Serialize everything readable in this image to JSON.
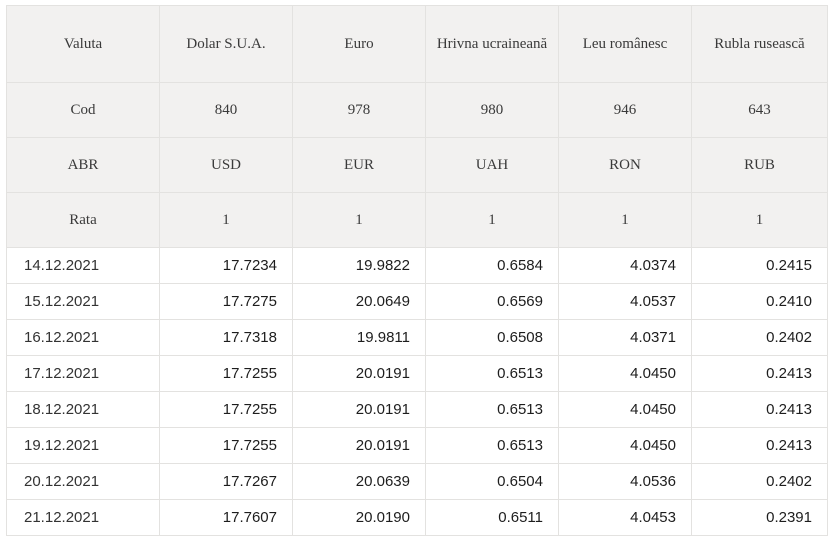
{
  "table": {
    "header": {
      "valuta_label": "Valuta",
      "currencies": [
        "Dolar S.U.A.",
        "Euro",
        "Hrivna ucraineană",
        "Leu românesc",
        "Rubla rusească"
      ],
      "cod_label": "Cod",
      "codes": [
        "840",
        "978",
        "980",
        "946",
        "643"
      ],
      "abr_label": "ABR",
      "abbrs": [
        "USD",
        "EUR",
        "UAH",
        "RON",
        "RUB"
      ],
      "rata_label": "Rata",
      "ratas": [
        "1",
        "1",
        "1",
        "1",
        "1"
      ]
    },
    "rows": [
      {
        "date": "14.12.2021",
        "values": [
          "17.7234",
          "19.9822",
          "0.6584",
          "4.0374",
          "0.2415"
        ]
      },
      {
        "date": "15.12.2021",
        "values": [
          "17.7275",
          "20.0649",
          "0.6569",
          "4.0537",
          "0.2410"
        ]
      },
      {
        "date": "16.12.2021",
        "values": [
          "17.7318",
          "19.9811",
          "0.6508",
          "4.0371",
          "0.2402"
        ]
      },
      {
        "date": "17.12.2021",
        "values": [
          "17.7255",
          "20.0191",
          "0.6513",
          "4.0450",
          "0.2413"
        ]
      },
      {
        "date": "18.12.2021",
        "values": [
          "17.7255",
          "20.0191",
          "0.6513",
          "4.0450",
          "0.2413"
        ]
      },
      {
        "date": "19.12.2021",
        "values": [
          "17.7255",
          "20.0191",
          "0.6513",
          "4.0450",
          "0.2413"
        ]
      },
      {
        "date": "20.12.2021",
        "values": [
          "17.7267",
          "20.0639",
          "0.6504",
          "4.0536",
          "0.2402"
        ]
      },
      {
        "date": "21.12.2021",
        "values": [
          "17.7607",
          "20.0190",
          "0.6511",
          "4.0453",
          "0.2391"
        ]
      }
    ]
  }
}
